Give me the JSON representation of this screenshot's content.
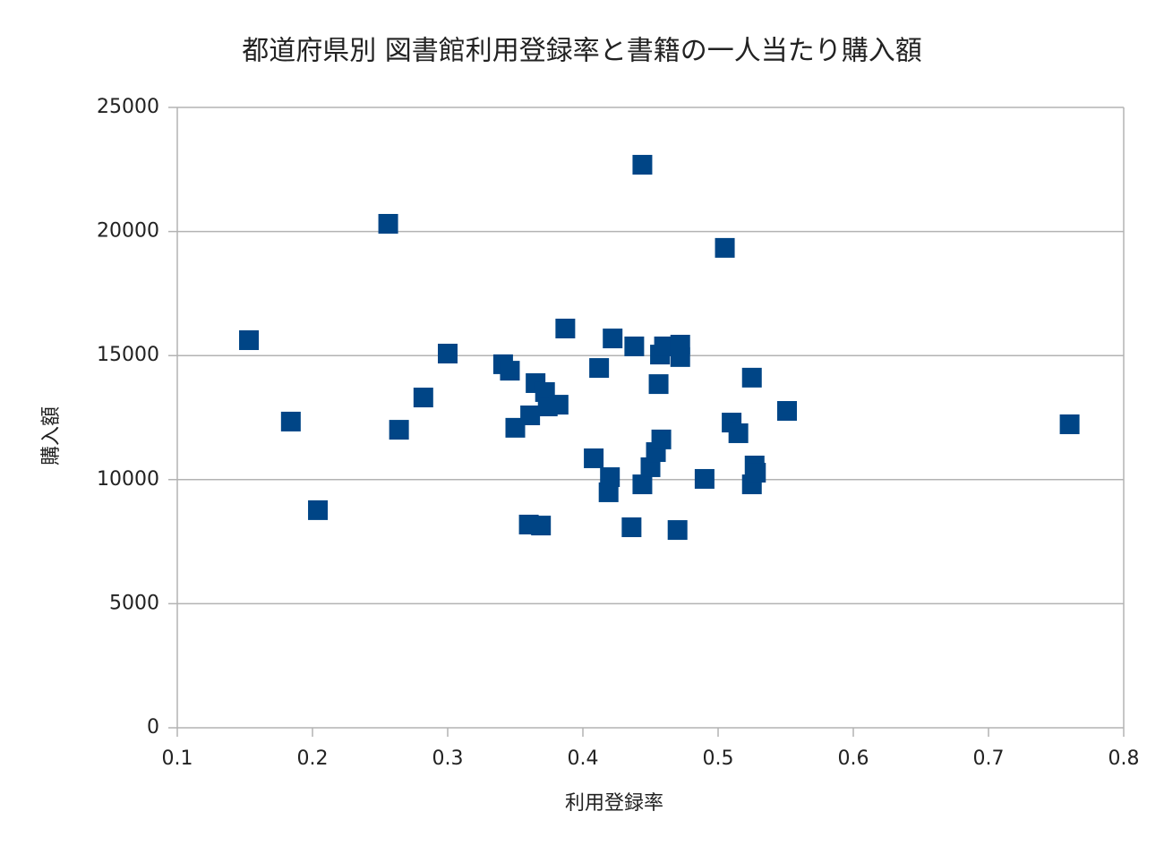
{
  "chart_data": {
    "type": "scatter",
    "title": "都道府県別 図書館利用登録率と書籍の一人当たり購入額",
    "x_label": "利用登録率",
    "y_label": "購入額",
    "color": "#004586",
    "grid": true,
    "xlim": [
      0.1,
      0.8
    ],
    "xticks": [
      0.1,
      0.2,
      0.3,
      0.4,
      0.5,
      0.6,
      0.7,
      0.8
    ],
    "ylim": [
      0,
      25000
    ],
    "yticks": [
      0,
      5000,
      10000,
      15000,
      20000,
      25000
    ],
    "x": [
      0.153,
      0.184,
      0.204,
      0.256,
      0.264,
      0.282,
      0.3,
      0.341,
      0.346,
      0.35,
      0.36,
      0.361,
      0.365,
      0.369,
      0.372,
      0.374,
      0.382,
      0.387,
      0.408,
      0.412,
      0.419,
      0.42,
      0.422,
      0.436,
      0.438,
      0.444,
      0.444,
      0.45,
      0.454,
      0.456,
      0.457,
      0.458,
      0.46,
      0.47,
      0.472,
      0.472,
      0.49,
      0.505,
      0.51,
      0.515,
      0.525,
      0.525,
      0.527,
      0.528,
      0.551,
      0.76
    ],
    "values": [
      15620,
      12340,
      8770,
      20310,
      12010,
      13310,
      15080,
      14650,
      14390,
      12090,
      8190,
      12590,
      13890,
      8150,
      13530,
      12950,
      13020,
      16090,
      10860,
      14500,
      9490,
      10100,
      15690,
      8080,
      15370,
      22690,
      9810,
      10500,
      11110,
      13850,
      15040,
      11620,
      15370,
      7970,
      15440,
      14940,
      10030,
      19340,
      12300,
      11870,
      9810,
      14110,
      10570,
      10280,
      12770,
      12230
    ]
  }
}
